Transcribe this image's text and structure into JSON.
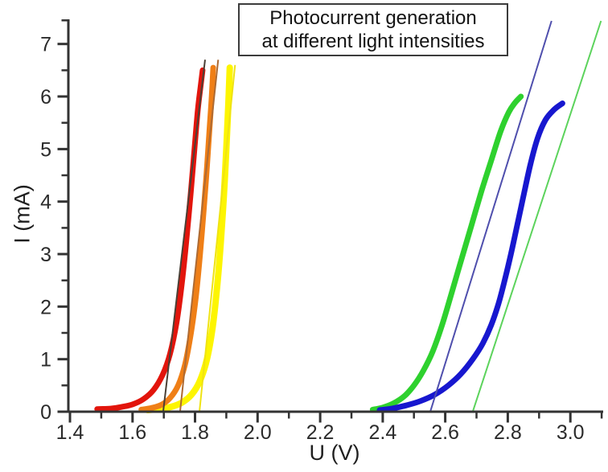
{
  "title": {
    "line1": "Photocurrent generation",
    "line2": "at different light intensities"
  },
  "chart_data": {
    "type": "line",
    "title": "Photocurrent generation at different light intensities",
    "xlabel": "U (V)",
    "ylabel": "I (mA)",
    "xlim": [
      1.4,
      3.105
    ],
    "ylim": [
      0,
      7.47
    ],
    "grid": false,
    "legend": "none",
    "axis_color": "#333333",
    "tick_label_color": "#2b2b2b",
    "x_major_ticks": [
      [
        1.4,
        "1.4"
      ],
      [
        1.6,
        "1.6"
      ],
      [
        1.8,
        "1.8"
      ],
      [
        2.0,
        "2.0"
      ],
      [
        2.2,
        "2.2"
      ],
      [
        2.4,
        "2.4"
      ],
      [
        2.6,
        "2.6"
      ],
      [
        2.8,
        "2.8"
      ],
      [
        3.0,
        "3.0"
      ]
    ],
    "x_minor_ticks": [
      1.5,
      1.7,
      1.9,
      2.1,
      2.3,
      2.5,
      2.7,
      2.9,
      3.1
    ],
    "y_major_ticks": [
      [
        0,
        "0"
      ],
      [
        1,
        "1"
      ],
      [
        2,
        "2"
      ],
      [
        3,
        "3"
      ],
      [
        4,
        "4"
      ],
      [
        5,
        "5"
      ],
      [
        6,
        "6"
      ],
      [
        7,
        "7"
      ]
    ],
    "y_minor_ticks": [
      0.5,
      1.5,
      2.5,
      3.5,
      4.5,
      5.5,
      6.5,
      7.45
    ],
    "series": [
      {
        "name": "intensity-yellow-curve",
        "color": "#fdf501",
        "width": 8,
        "points": [
          [
            1.648,
            0.03
          ],
          [
            1.685,
            0.05
          ],
          [
            1.722,
            0.09
          ],
          [
            1.757,
            0.17
          ],
          [
            1.788,
            0.32
          ],
          [
            1.815,
            0.58
          ],
          [
            1.838,
            1.0
          ],
          [
            1.856,
            1.6
          ],
          [
            1.87,
            2.35
          ],
          [
            1.882,
            3.2
          ],
          [
            1.892,
            4.1
          ],
          [
            1.9,
            5.0
          ],
          [
            1.906,
            5.8
          ],
          [
            1.911,
            6.55
          ]
        ]
      },
      {
        "name": "intensity-orange-curve",
        "color": "#ef7f17",
        "width": 7,
        "points": [
          [
            1.628,
            0.04
          ],
          [
            1.66,
            0.07
          ],
          [
            1.692,
            0.13
          ],
          [
            1.72,
            0.26
          ],
          [
            1.746,
            0.5
          ],
          [
            1.768,
            0.9
          ],
          [
            1.787,
            1.5
          ],
          [
            1.803,
            2.2
          ],
          [
            1.816,
            3.0
          ],
          [
            1.828,
            3.85
          ],
          [
            1.838,
            4.65
          ],
          [
            1.847,
            5.45
          ],
          [
            1.853,
            6.0
          ],
          [
            1.858,
            6.55
          ]
        ]
      },
      {
        "name": "intensity-red-curve",
        "color": "#e2150c",
        "width": 7,
        "points": [
          [
            1.487,
            0.05
          ],
          [
            1.53,
            0.06
          ],
          [
            1.565,
            0.09
          ],
          [
            1.6,
            0.14
          ],
          [
            1.635,
            0.24
          ],
          [
            1.668,
            0.42
          ],
          [
            1.696,
            0.7
          ],
          [
            1.72,
            1.1
          ],
          [
            1.741,
            1.7
          ],
          [
            1.758,
            2.45
          ],
          [
            1.772,
            3.25
          ],
          [
            1.786,
            4.15
          ],
          [
            1.798,
            5.0
          ],
          [
            1.809,
            5.75
          ],
          [
            1.818,
            6.2
          ],
          [
            1.824,
            6.5
          ]
        ]
      },
      {
        "name": "intensity-green-curve",
        "color": "#2ed12e",
        "width": 7,
        "points": [
          [
            2.368,
            0.04
          ],
          [
            2.4,
            0.08
          ],
          [
            2.435,
            0.16
          ],
          [
            2.47,
            0.3
          ],
          [
            2.5,
            0.5
          ],
          [
            2.53,
            0.78
          ],
          [
            2.56,
            1.15
          ],
          [
            2.59,
            1.65
          ],
          [
            2.62,
            2.25
          ],
          [
            2.652,
            2.9
          ],
          [
            2.684,
            3.55
          ],
          [
            2.716,
            4.2
          ],
          [
            2.748,
            4.8
          ],
          [
            2.778,
            5.35
          ],
          [
            2.803,
            5.7
          ],
          [
            2.823,
            5.88
          ],
          [
            2.842,
            6.0
          ]
        ]
      },
      {
        "name": "intensity-blue-curve",
        "color": "#1717cf",
        "width": 7,
        "points": [
          [
            2.39,
            0.03
          ],
          [
            2.43,
            0.06
          ],
          [
            2.475,
            0.12
          ],
          [
            2.52,
            0.2
          ],
          [
            2.565,
            0.32
          ],
          [
            2.61,
            0.5
          ],
          [
            2.65,
            0.72
          ],
          [
            2.688,
            1.0
          ],
          [
            2.72,
            1.3
          ],
          [
            2.747,
            1.65
          ],
          [
            2.77,
            2.05
          ],
          [
            2.79,
            2.5
          ],
          [
            2.81,
            3.0
          ],
          [
            2.83,
            3.55
          ],
          [
            2.85,
            4.1
          ],
          [
            2.872,
            4.7
          ],
          [
            2.895,
            5.2
          ],
          [
            2.92,
            5.55
          ],
          [
            2.948,
            5.75
          ],
          [
            2.975,
            5.87
          ]
        ]
      }
    ],
    "tangent_lines": [
      {
        "name": "red-threshold-tangent",
        "color": "#4b4036",
        "width": 2,
        "x_intercept": 1.698,
        "from": [
          1.698,
          0
        ],
        "to": [
          1.832,
          6.7
        ]
      },
      {
        "name": "orange-threshold-tangent",
        "color": "#ad6a33",
        "width": 2,
        "x_intercept": 1.752,
        "from": [
          1.752,
          0
        ],
        "to": [
          1.874,
          6.7
        ]
      },
      {
        "name": "yellow-threshold-tangent",
        "color": "#efe313",
        "width": 2,
        "x_intercept": 1.814,
        "from": [
          1.814,
          0
        ],
        "to": [
          1.928,
          6.6
        ]
      },
      {
        "name": "green-threshold-tangent",
        "color": "#4f4fad",
        "width": 2,
        "x_intercept": 2.552,
        "from": [
          2.552,
          0
        ],
        "to": [
          2.94,
          7.44
        ]
      },
      {
        "name": "blue-threshold-tangent",
        "color": "#5cd35c",
        "width": 2,
        "x_intercept": 2.688,
        "from": [
          2.688,
          0
        ],
        "to": [
          3.098,
          7.44
        ]
      }
    ]
  }
}
